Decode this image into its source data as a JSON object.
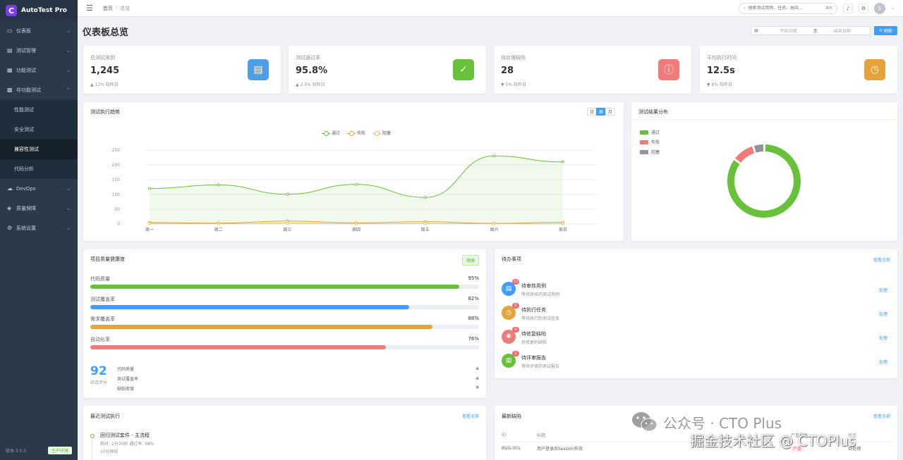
{
  "brand": {
    "logo_letter": "C",
    "name": "AutoTest Pro",
    "accent": "#7b3fe4"
  },
  "sidebar": {
    "items": [
      {
        "label": "仪表板",
        "icon": "monitor-icon",
        "glyph": "▭"
      },
      {
        "label": "测试管理",
        "icon": "document-icon",
        "glyph": "▤"
      },
      {
        "label": "功能测试",
        "icon": "grid-icon",
        "glyph": "▦"
      },
      {
        "label": "非功能测试",
        "icon": "chart-icon",
        "glyph": "▩"
      }
    ],
    "submenu": [
      {
        "label": "性能测试"
      },
      {
        "label": "安全测试"
      },
      {
        "label": "兼容性测试"
      },
      {
        "label": "代码分析"
      }
    ],
    "items_after": [
      {
        "label": "DevOps",
        "icon": "cloud-icon",
        "glyph": "☁"
      },
      {
        "label": "质量保障",
        "icon": "shield-icon",
        "glyph": "◈"
      },
      {
        "label": "系统设置",
        "icon": "gear-icon",
        "glyph": "⚙"
      }
    ],
    "version": "版本 3.0.0",
    "env": "生产环境"
  },
  "header": {
    "breadcrumb_home": "首页",
    "breadcrumb_sep": "/",
    "breadcrumb_current": "总览",
    "search_placeholder": "搜索测试用例、任务、报告...",
    "search_shortcut": "⌘K",
    "avatar_letter": "S"
  },
  "page": {
    "title": "仪表板总览",
    "date_start_placeholder": "开始日期",
    "date_to": "至",
    "date_end_placeholder": "结束日期",
    "refresh_label": "刷新"
  },
  "stats": [
    {
      "label": "总测试用例",
      "value": "1,245",
      "trend": "▲ 12% 较昨日",
      "icon": "document-icon",
      "glyph": "▤",
      "color": "#4c9fe6"
    },
    {
      "label": "测试通过率",
      "value": "95.8%",
      "trend": "▲ 2.5% 较昨日",
      "icon": "check-icon",
      "glyph": "✓",
      "color": "#67c23a"
    },
    {
      "label": "待处理缺陷",
      "value": "28",
      "trend": "▼ 5% 较昨日",
      "icon": "alert-icon",
      "glyph": "ⓘ",
      "color": "#f07b7b"
    },
    {
      "label": "平均执行时间",
      "value": "12.5s",
      "trend": "▼ 8% 较昨日",
      "icon": "clock-icon",
      "glyph": "◷",
      "color": "#e6a23c"
    }
  ],
  "trend_panel": {
    "title": "测试执行趋势",
    "segments": [
      "日",
      "周",
      "月"
    ],
    "active_segment": 1
  },
  "chart_data": {
    "type": "line",
    "categories": [
      "周一",
      "周二",
      "周三",
      "周四",
      "周五",
      "周六",
      "周日"
    ],
    "series": [
      {
        "name": "通过",
        "values": [
          120,
          132,
          101,
          134,
          90,
          230,
          210
        ],
        "color": "#67c23a"
      },
      {
        "name": "失败",
        "values": [
          5,
          3,
          10,
          4,
          8,
          2,
          6
        ],
        "color": "#e6a23c"
      },
      {
        "name": "阻塞",
        "values": [
          2,
          1,
          3,
          1,
          2,
          1,
          1
        ],
        "color": "#f0c040"
      }
    ],
    "yticks": [
      0,
      50,
      100,
      150,
      200,
      250
    ],
    "ylim": [
      0,
      250
    ],
    "grid": true,
    "legend": "top-center"
  },
  "distribution_panel": {
    "title": "测试结果分布",
    "legend": [
      {
        "name": "通过",
        "color": "#67c23a",
        "value": 85
      },
      {
        "name": "失败",
        "color": "#f07b7b",
        "value": 10
      },
      {
        "name": "阻塞",
        "color": "#909399",
        "value": 5
      }
    ]
  },
  "health_panel": {
    "title": "项目质量健康度",
    "tag": "健康",
    "metrics": [
      {
        "label": "代码质量",
        "value": "95%",
        "pct": 95,
        "color": "#67c23a"
      },
      {
        "label": "测试覆盖率",
        "value": "82%",
        "pct": 82,
        "color": "#409eff"
      },
      {
        "label": "需求覆盖率",
        "value": "88%",
        "pct": 88,
        "color": "#e6a23c"
      },
      {
        "label": "自动化率",
        "value": "76%",
        "pct": 76,
        "color": "#f07b7b"
      }
    ],
    "score": "92",
    "score_label": "综合评分",
    "sub_metrics": [
      {
        "label": "代码质量",
        "arrow": "▲"
      },
      {
        "label": "测试覆盖率",
        "arrow": "▲"
      },
      {
        "label": "缺陷密度",
        "arrow": "▼"
      }
    ]
  },
  "todo_panel": {
    "title": "待办事项",
    "link": "查看全部",
    "items": [
      {
        "title": "待审核用例",
        "sub": "等待审核的测试用例",
        "badge": "12",
        "action": "处理",
        "color": "#409eff",
        "icon": "document-icon",
        "glyph": "▤"
      },
      {
        "title": "待执行任务",
        "sub": "等待执行的测试任务",
        "badge": "5",
        "action": "处理",
        "color": "#e6a23c",
        "icon": "clock-icon",
        "glyph": "◷"
      },
      {
        "title": "待修复缺陷",
        "sub": "待修复的缺陷",
        "badge": "8",
        "action": "处理",
        "color": "#f07b7b",
        "icon": "bug-icon",
        "glyph": "✱"
      },
      {
        "title": "待评审报告",
        "sub": "等待评审的测试报告",
        "badge": "3",
        "action": "处理",
        "color": "#67c23a",
        "icon": "report-icon",
        "glyph": "▥"
      }
    ]
  },
  "exec_panel": {
    "title": "最近测试执行",
    "link": "查看全部",
    "item": {
      "title": "回归测试套件 - 主流程",
      "sub": "耗时: 2分30秒    通过率: 98%",
      "time": "10分钟前"
    }
  },
  "bugs_panel": {
    "title": "最新缺陷",
    "link": "查看全部",
    "columns": [
      "ID",
      "标题",
      "严重程度",
      "状态"
    ],
    "rows": [
      {
        "id": "BUG-001",
        "title": "用户登录后Session失效",
        "severity": "严重",
        "status": "待处理"
      }
    ]
  },
  "watermark": {
    "line1": "公众号 · CTO Plus",
    "line2": "掘金技术社区 @ CTOPlus"
  }
}
